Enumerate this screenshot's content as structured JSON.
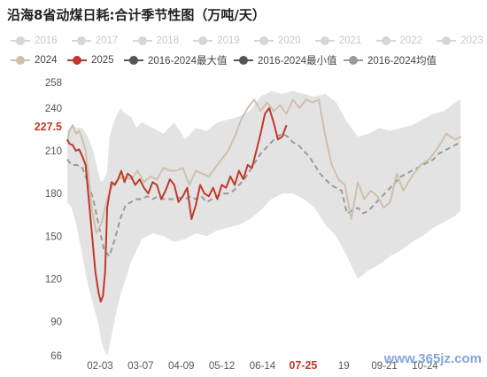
{
  "title": "沿海8省动煤日耗:合计季节性图（万吨/天）",
  "watermark": "www.365jz.com",
  "chart_data": {
    "type": "line",
    "title": "沿海8省动煤日耗:合计季节性图（万吨/天）",
    "xlabel": "",
    "ylabel": "",
    "ylim": [
      66,
      258
    ],
    "yticks": [
      66,
      90,
      120,
      150,
      180,
      210,
      240,
      258
    ],
    "xticks": [
      "02-03",
      "03-07",
      "04-09",
      "05-12",
      "06-14",
      "07-25",
      "19",
      "09-21",
      "10-24"
    ],
    "highlight_x": "07-25",
    "highlight_y_label": "227.5",
    "legend_position": "top",
    "grid": false,
    "series": [
      {
        "name": "2016",
        "inactive": true
      },
      {
        "name": "2017",
        "inactive": true
      },
      {
        "name": "2018",
        "inactive": true
      },
      {
        "name": "2019",
        "inactive": true
      },
      {
        "name": "2020",
        "inactive": true
      },
      {
        "name": "2021",
        "inactive": true
      },
      {
        "name": "2022",
        "inactive": true
      },
      {
        "name": "2023",
        "inactive": true
      },
      {
        "name": "2024",
        "color": "#cfc0ab",
        "x": [
          1,
          3,
          6,
          9,
          12,
          15,
          18,
          20,
          24,
          28,
          33,
          38,
          43,
          48,
          53,
          60,
          66,
          72,
          78,
          84,
          90,
          96,
          102,
          108,
          114,
          120,
          126,
          132,
          138,
          144,
          150,
          156,
          162,
          168,
          174,
          180,
          186,
          192,
          198,
          204,
          210,
          216,
          222,
          228,
          234,
          240,
          246,
          252,
          258,
          264,
          270,
          276,
          282,
          288,
          294,
          300,
          306,
          312,
          320,
          328,
          336,
          344,
          352,
          360,
          366
        ],
        "values": [
          216,
          224,
          228,
          222,
          224,
          218,
          210,
          196,
          168,
          152,
          160,
          176,
          186,
          190,
          192,
          190,
          196,
          188,
          192,
          190,
          198,
          196,
          196,
          198,
          186,
          196,
          194,
          192,
          198,
          204,
          210,
          220,
          232,
          240,
          246,
          238,
          244,
          238,
          242,
          236,
          246,
          240,
          246,
          244,
          246,
          220,
          200,
          190,
          186,
          162,
          188,
          176,
          182,
          178,
          170,
          174,
          194,
          182,
          192,
          200,
          204,
          212,
          222,
          218,
          220
        ]
      },
      {
        "name": "2025",
        "color": "#c0392b",
        "x": [
          1,
          3,
          6,
          9,
          12,
          15,
          18,
          21,
          24,
          27,
          30,
          32,
          34,
          36,
          38,
          40,
          42,
          45,
          48,
          51,
          54,
          57,
          60,
          64,
          68,
          72,
          76,
          80,
          84,
          88,
          92,
          96,
          100,
          104,
          108,
          112,
          116,
          120,
          124,
          128,
          132,
          136,
          140,
          144,
          148,
          152,
          156,
          160,
          164,
          168,
          172,
          176,
          180,
          184,
          188,
          192,
          196,
          200,
          204
        ],
        "values": [
          218,
          215,
          214,
          210,
          211,
          206,
          200,
          175,
          150,
          125,
          110,
          104,
          108,
          125,
          170,
          180,
          188,
          186,
          190,
          196,
          188,
          194,
          192,
          186,
          190,
          184,
          180,
          188,
          186,
          176,
          182,
          190,
          186,
          174,
          178,
          184,
          162,
          172,
          186,
          180,
          178,
          184,
          176,
          186,
          184,
          192,
          186,
          196,
          190,
          200,
          198,
          210,
          222,
          236,
          240,
          230,
          218,
          220,
          228
        ]
      },
      {
        "name": "2016-2024最大值",
        "color": "#555555"
      },
      {
        "name": "2016-2024最小值",
        "color": "#555555"
      },
      {
        "name": "2016-2024均值",
        "color": "#9a9a9a",
        "x": [
          1,
          5,
          10,
          15,
          20,
          25,
          30,
          35,
          40,
          45,
          50,
          55,
          60,
          65,
          70,
          75,
          80,
          85,
          90,
          95,
          100,
          105,
          110,
          115,
          120,
          125,
          130,
          135,
          140,
          145,
          150,
          155,
          160,
          165,
          170,
          175,
          180,
          185,
          190,
          195,
          200,
          205,
          210,
          215,
          220,
          225,
          230,
          235,
          240,
          245,
          250,
          255,
          260,
          265,
          270,
          275,
          280,
          285,
          290,
          295,
          300,
          305,
          310,
          315,
          320,
          325,
          330,
          335,
          340,
          345,
          350,
          355,
          360,
          365
        ],
        "values": [
          204,
          200,
          200,
          198,
          188,
          176,
          158,
          140,
          136,
          148,
          162,
          172,
          174,
          176,
          176,
          178,
          176,
          178,
          176,
          176,
          176,
          177,
          176,
          178,
          176,
          178,
          174,
          176,
          178,
          180,
          180,
          182,
          186,
          190,
          196,
          202,
          208,
          212,
          216,
          220,
          222,
          220,
          216,
          214,
          210,
          206,
          200,
          194,
          190,
          186,
          184,
          182,
          166,
          168,
          170,
          166,
          168,
          172,
          176,
          180,
          184,
          188,
          192,
          194,
          196,
          198,
          200,
          202,
          204,
          208,
          210,
          212,
          214,
          216
        ]
      }
    ],
    "envelope": {
      "x": [
        1,
        5,
        10,
        15,
        20,
        25,
        30,
        32,
        35,
        38,
        40,
        45,
        50,
        55,
        60,
        65,
        70,
        80,
        90,
        100,
        110,
        120,
        130,
        140,
        150,
        160,
        170,
        180,
        190,
        200,
        210,
        220,
        230,
        240,
        250,
        260,
        270,
        280,
        290,
        300,
        310,
        320,
        330,
        340,
        350,
        360,
        365
      ],
      "max": [
        224,
        228,
        226,
        226,
        220,
        210,
        194,
        188,
        190,
        196,
        220,
        232,
        240,
        236,
        234,
        226,
        230,
        226,
        222,
        230,
        218,
        226,
        224,
        230,
        232,
        234,
        238,
        248,
        252,
        250,
        252,
        250,
        248,
        250,
        244,
        230,
        220,
        222,
        226,
        224,
        226,
        228,
        232,
        236,
        238,
        244,
        246
      ],
      "min": [
        174,
        170,
        156,
        136,
        116,
        102,
        88,
        78,
        70,
        66,
        72,
        92,
        108,
        120,
        132,
        140,
        148,
        152,
        150,
        146,
        148,
        152,
        150,
        154,
        156,
        158,
        162,
        168,
        176,
        180,
        180,
        176,
        170,
        158,
        150,
        136,
        120,
        126,
        130,
        136,
        140,
        146,
        150,
        156,
        160,
        164,
        168
      ]
    }
  }
}
